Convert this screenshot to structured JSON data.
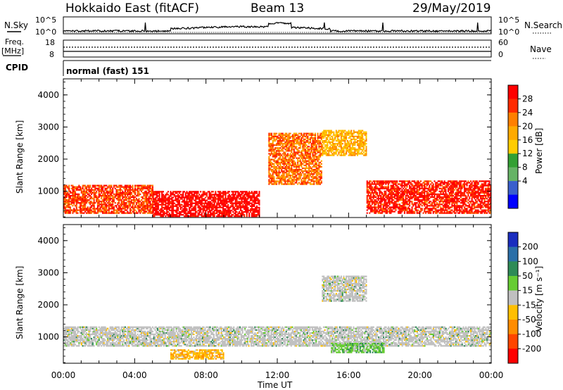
{
  "header": {
    "station": "Hokkaido East (fitACF)",
    "beam": "Beam 13",
    "date": "29/May/2019"
  },
  "nsky_panel": {
    "label": "N.Sky",
    "right_label": "N.Search",
    "ticks_left": [
      "10^5",
      "10^0"
    ],
    "ticks_right": [
      "10^5",
      "10^0"
    ]
  },
  "freq_panel": {
    "label_line1": "Freq.",
    "label_line2": "[MHz]",
    "ticks_left": [
      "18",
      "8"
    ],
    "ticks_right": [
      "60",
      "0"
    ],
    "right_label": "Nave"
  },
  "cpid_panel": {
    "label": "CPID",
    "value": "normal (fast) 151"
  },
  "power_colorbar": {
    "label": "Power [dB]",
    "ticks": [
      "28",
      "24",
      "20",
      "16",
      "12",
      "8",
      "4"
    ],
    "colors": [
      "#ff0000",
      "#ff2a00",
      "#ff7f00",
      "#ffaa00",
      "#ffcc00",
      "#33a033",
      "#66b366",
      "#3a5fcd",
      "#0000ff"
    ]
  },
  "velocity_colorbar": {
    "label": "Velocity [m s⁻¹]",
    "ticks": [
      "200",
      "100",
      "50",
      "15",
      "-15",
      "-50",
      "-100",
      "-200"
    ],
    "colors": [
      "#1a2dbf",
      "#2b6fa8",
      "#2e8b57",
      "#66cc33",
      "#c0c0c0",
      "#ffbf00",
      "#ff8c00",
      "#ff4500",
      "#ff0000"
    ]
  },
  "chart_data": [
    {
      "type": "heatmap",
      "ylabel": "Slant Range [km]",
      "yticks": [
        "1000",
        "2000",
        "3000",
        "4000"
      ],
      "ylim": [
        180,
        4500
      ],
      "xlim": [
        0,
        24
      ],
      "xticks": [
        "00:00",
        "04:00",
        "08:00",
        "12:00",
        "16:00",
        "20:00",
        "00:00"
      ],
      "xlabel": "Time UT",
      "value_label": "Power [dB]",
      "regions": [
        {
          "t": [
            0,
            5
          ],
          "r": [
            300,
            1200
          ],
          "power": 24
        },
        {
          "t": [
            5,
            11
          ],
          "r": [
            200,
            1000
          ],
          "power": 28
        },
        {
          "t": [
            11.5,
            14.5
          ],
          "r": [
            1200,
            2800
          ],
          "power": 22
        },
        {
          "t": [
            14.5,
            17
          ],
          "r": [
            2100,
            2900
          ],
          "power": 18
        },
        {
          "t": [
            17,
            24
          ],
          "r": [
            300,
            1300
          ],
          "power": 26
        }
      ]
    },
    {
      "type": "heatmap",
      "ylabel": "Slant Range [km]",
      "yticks": [
        "1000",
        "2000",
        "3000",
        "4000"
      ],
      "ylim": [
        180,
        4500
      ],
      "xlim": [
        0,
        24
      ],
      "xticks": [
        "00:00",
        "04:00",
        "08:00",
        "12:00",
        "16:00",
        "20:00",
        "00:00"
      ],
      "xlabel": "Time UT",
      "value_label": "Velocity [m s⁻¹]",
      "regions": [
        {
          "t": [
            0,
            24
          ],
          "r": [
            700,
            1300
          ],
          "velocity": 0
        },
        {
          "t": [
            6,
            9
          ],
          "r": [
            300,
            600
          ],
          "velocity": -50
        },
        {
          "t": [
            15,
            18
          ],
          "r": [
            500,
            800
          ],
          "velocity": 50
        },
        {
          "t": [
            14.5,
            17
          ],
          "r": [
            2100,
            2900
          ],
          "velocity": 0
        }
      ]
    }
  ]
}
